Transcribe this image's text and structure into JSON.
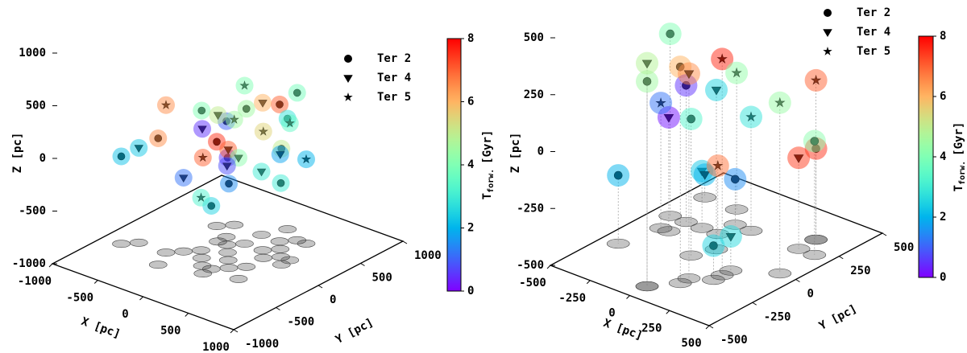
{
  "chart_data": [
    {
      "type": "scatter3d",
      "xlabel": "X [pc]",
      "ylabel": "Y [pc]",
      "zlabel": "Z [pc]",
      "xlim": [
        -1000,
        1000
      ],
      "ylim": [
        -1000,
        1000
      ],
      "zlim": [
        -1000,
        1000
      ],
      "xticks": [
        -1000,
        -500,
        0,
        500,
        1000
      ],
      "yticks": [
        -1000,
        -500,
        0,
        500,
        1000
      ],
      "zticks": [
        -1000,
        -500,
        0,
        500,
        1000
      ],
      "colorbar": {
        "label": "T",
        "label_sub": "forw.",
        "label_unit": "[Gyr]",
        "lim": [
          0,
          8
        ],
        "ticks": [
          0,
          2,
          4,
          6,
          8
        ],
        "colormap": "rainbow"
      },
      "drop_lines": false,
      "series": [
        {
          "name": "Ter 2",
          "marker": "circle",
          "x": [
            -800,
            200,
            100,
            -200,
            300,
            0,
            -300,
            400,
            100,
            -100,
            500,
            200,
            -400,
            300
          ],
          "y": [
            -400,
            400,
            -300,
            200,
            -100,
            0,
            -500,
            200,
            600,
            -200,
            100,
            -200,
            300,
            500
          ],
          "z": [
            -170,
            300,
            -400,
            100,
            500,
            -100,
            200,
            -300,
            50,
            400,
            100,
            -200,
            -200,
            400
          ],
          "c": [
            2.2,
            7,
            2.5,
            1,
            4.5,
            0.5,
            6.5,
            3,
            2.8,
            4,
            5,
            1.5,
            7.5,
            3.8
          ]
        },
        {
          "name": "Ter 4",
          "marker": "triangle",
          "x": [
            -700,
            0,
            -200,
            300,
            100,
            -300,
            400,
            200,
            0,
            -100
          ],
          "y": [
            -300,
            -300,
            100,
            300,
            -100,
            -200,
            -300,
            200,
            400,
            100
          ],
          "z": [
            -100,
            300,
            200,
            -100,
            50,
            -300,
            150,
            400,
            -400,
            -250
          ],
          "c": [
            2.3,
            0.5,
            5,
            1.8,
            7,
            1.2,
            4.2,
            6,
            3,
            0.8
          ]
        },
        {
          "name": "Ter 5",
          "marker": "star",
          "x": [
            -400,
            500,
            -200,
            300,
            100,
            -300,
            400,
            0
          ],
          "y": [
            -300,
            200,
            -100,
            100,
            -400,
            400,
            500,
            200
          ],
          "z": [
            400,
            300,
            -500,
            200,
            100,
            0,
            -200,
            500
          ],
          "c": [
            6.5,
            3.5,
            3.2,
            5.5,
            7,
            4.5,
            2,
            4
          ]
        }
      ]
    },
    {
      "type": "scatter3d",
      "xlabel": "X [pc]",
      "ylabel": "Y [pc]",
      "zlabel": "Z [pc]",
      "xlim": [
        -500,
        500
      ],
      "ylim": [
        -500,
        500
      ],
      "zlim": [
        -500,
        500
      ],
      "xticks": [
        -500,
        -250,
        0,
        250,
        500
      ],
      "yticks": [
        -500,
        -250,
        0,
        250,
        500
      ],
      "zticks": [
        -500,
        -250,
        0,
        250,
        500
      ],
      "colorbar": {
        "label": "T",
        "label_sub": "forw.",
        "label_unit": "[Gyr]",
        "lim": [
          0,
          8
        ],
        "ticks": [
          0,
          2,
          4,
          6,
          8
        ],
        "colormap": "rainbow"
      },
      "drop_lines": true,
      "series": [
        {
          "name": "Ter 2",
          "marker": "circle",
          "x": [
            -400,
            0,
            100,
            -300,
            300,
            -100,
            200,
            400,
            -50,
            -400
          ],
          "y": [
            100,
            -400,
            -300,
            100,
            300,
            200,
            -200,
            200,
            -100,
            -200
          ],
          "z": [
            300,
            400,
            450,
            100,
            -100,
            -300,
            -350,
            0,
            100,
            -200
          ],
          "c": [
            4,
            4.5,
            6,
            0.5,
            7.5,
            1.5,
            2.5,
            4.2,
            3.3,
            2
          ]
        },
        {
          "name": "Ter 4",
          "marker": "triangle",
          "x": [
            0,
            100,
            -300,
            300,
            -200,
            200,
            0,
            -400
          ],
          "y": [
            -400,
            -250,
            0,
            200,
            100,
            -100,
            0,
            300
          ],
          "z": [
            480,
            400,
            0,
            -100,
            -250,
            -350,
            200,
            -400
          ],
          "c": [
            4.8,
            6.5,
            0.2,
            7.4,
            2.3,
            2.6,
            2.5,
            2
          ]
        },
        {
          "name": "Ter 5",
          "marker": "star",
          "x": [
            -350,
            200,
            300,
            -200,
            400,
            -100,
            0
          ],
          "y": [
            0,
            -150,
            300,
            300,
            0,
            100,
            200
          ],
          "z": [
            50,
            450,
            200,
            100,
            250,
            -200,
            0
          ],
          "c": [
            1.2,
            7.6,
            7,
            4.3,
            4.4,
            6.8,
            2.8
          ]
        }
      ]
    }
  ]
}
